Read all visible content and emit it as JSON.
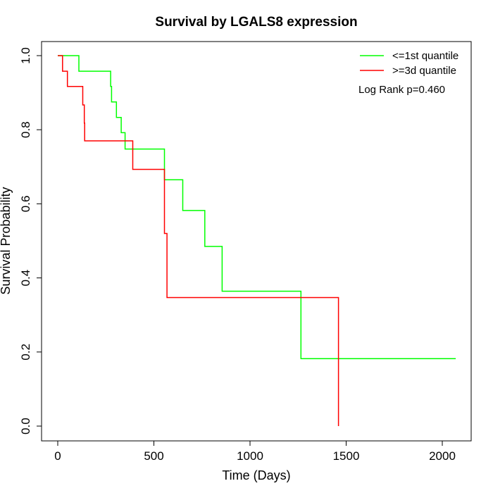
{
  "chart_data": {
    "type": "line",
    "subtype": "kaplan-meier-step",
    "title": "Survival by LGALS8 expression",
    "xlabel": "Time (Days)",
    "ylabel": "Survival Probability",
    "xlim": [
      0,
      2070
    ],
    "ylim": [
      0,
      1
    ],
    "x_ticks": [
      0,
      500,
      1000,
      1500,
      2000
    ],
    "y_ticks": [
      "0.0",
      "0.2",
      "0.4",
      "0.6",
      "0.8",
      "1.0"
    ],
    "grid": false,
    "legend_position": "top-right",
    "annotation": "Log Rank p=0.460",
    "series": [
      {
        "name": "<=1st quantile",
        "color": "#00ff00",
        "x": [
          0,
          110,
          110,
          275,
          275,
          280,
          280,
          290,
          290,
          305,
          305,
          330,
          330,
          350,
          350,
          555,
          555,
          650,
          650,
          765,
          765,
          855,
          855,
          1265,
          1265,
          2070
        ],
        "y": [
          1.0,
          1.0,
          0.958,
          0.958,
          0.917,
          0.917,
          0.875,
          0.875,
          0.875,
          0.875,
          0.833,
          0.833,
          0.792,
          0.792,
          0.748,
          0.748,
          0.665,
          0.665,
          0.582,
          0.582,
          0.485,
          0.485,
          0.364,
          0.364,
          0.182,
          0.182
        ]
      },
      {
        "name": ">=3d quantile",
        "color": "#ff0000",
        "x": [
          0,
          25,
          25,
          50,
          50,
          130,
          130,
          138,
          138,
          140,
          140,
          390,
          390,
          555,
          555,
          568,
          568,
          1460,
          1460
        ],
        "y": [
          1.0,
          1.0,
          0.958,
          0.958,
          0.917,
          0.917,
          0.867,
          0.867,
          0.818,
          0.818,
          0.77,
          0.77,
          0.693,
          0.693,
          0.52,
          0.52,
          0.347,
          0.347,
          0.0
        ]
      }
    ]
  }
}
